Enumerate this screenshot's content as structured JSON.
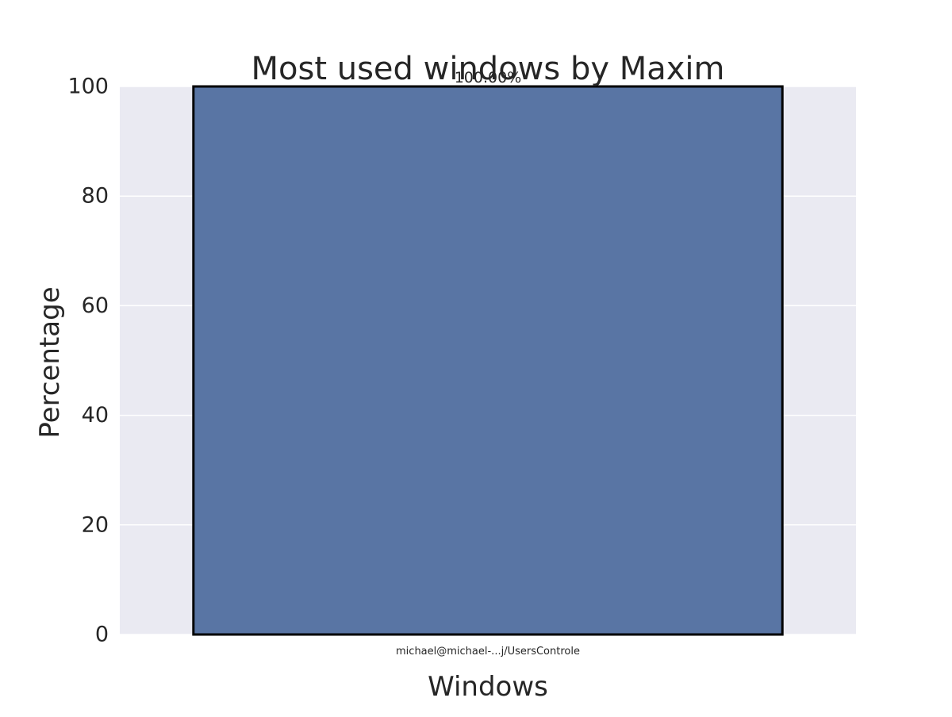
{
  "chart_data": {
    "type": "bar",
    "title": "Most used windows by Maxim",
    "xlabel": "Windows",
    "ylabel": "Percentage",
    "categories": [
      "michael@michael-...j/UsersControle"
    ],
    "values": [
      100.0
    ],
    "data_labels": [
      "100.00%"
    ],
    "ylim": [
      0,
      100
    ],
    "yticks": [
      0,
      20,
      40,
      60,
      80,
      100
    ],
    "grid": true,
    "legend": "none",
    "colors": {
      "bar": "#5975a4",
      "bar_edge": "#000000",
      "plot_background": "#eaeaf2",
      "grid": "#ffffff",
      "text": "#262626"
    }
  }
}
